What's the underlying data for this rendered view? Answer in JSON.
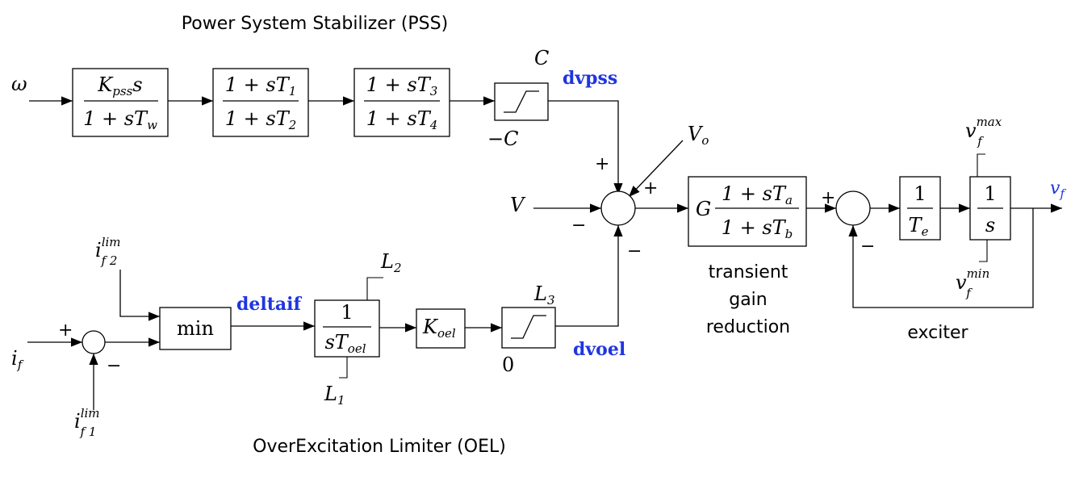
{
  "captions": {
    "pss": "Power System Stabilizer (PSS)",
    "oel": "OverExcitation Limiter (OEL)",
    "transient": [
      "transient",
      "gain",
      "reduction"
    ],
    "exciter": "exciter"
  },
  "inputs": {
    "omega": "ω",
    "V": "V",
    "Vo": "V",
    "Vo_sub": "o",
    "if": "i",
    "if_sub": "f",
    "iflim": "i",
    "iflim_sup": "lim",
    "iflim2_sub": "f 2",
    "iflim1_sub": "f 1"
  },
  "blocks": {
    "washout": {
      "num": "K",
      "num_sub": "pss",
      "num_tail": "s",
      "den": "1 + sT",
      "den_sub": "w"
    },
    "lead1": {
      "num": "1 + sT",
      "num_sub": "1",
      "den": "1 + sT",
      "den_sub": "2"
    },
    "lead2": {
      "num": "1 + sT",
      "num_sub": "3",
      "den": "1 + sT",
      "den_sub": "4"
    },
    "tgr": {
      "gain": "G",
      "num": "1 + sT",
      "num_sub": "a",
      "den": "1 + sT",
      "den_sub": "b"
    },
    "te": {
      "num": "1",
      "den": "T",
      "den_sub": "e"
    },
    "integ": {
      "num": "1",
      "den": "s"
    },
    "min": "min",
    "oel_int": {
      "num": "1",
      "den": "sT",
      "den_sub": "oel"
    },
    "koel": {
      "main": "K",
      "sub": "oel"
    }
  },
  "limits": {
    "C": "C",
    "negC": "−C",
    "L2": "L",
    "L2_sub": "2",
    "L1": "L",
    "L1_sub": "1",
    "L3": "L",
    "L3_sub": "3",
    "zero": "0",
    "vf": "v",
    "vf_sub": "f",
    "max_sup": "max",
    "min_sup": "min"
  },
  "signals": {
    "dvpss": "dvpss",
    "deltaif": "deltaif",
    "dvoel": "dvoel",
    "vf": "v",
    "vf_sub": "f"
  },
  "signs": {
    "plus": "+",
    "minus": "−"
  }
}
